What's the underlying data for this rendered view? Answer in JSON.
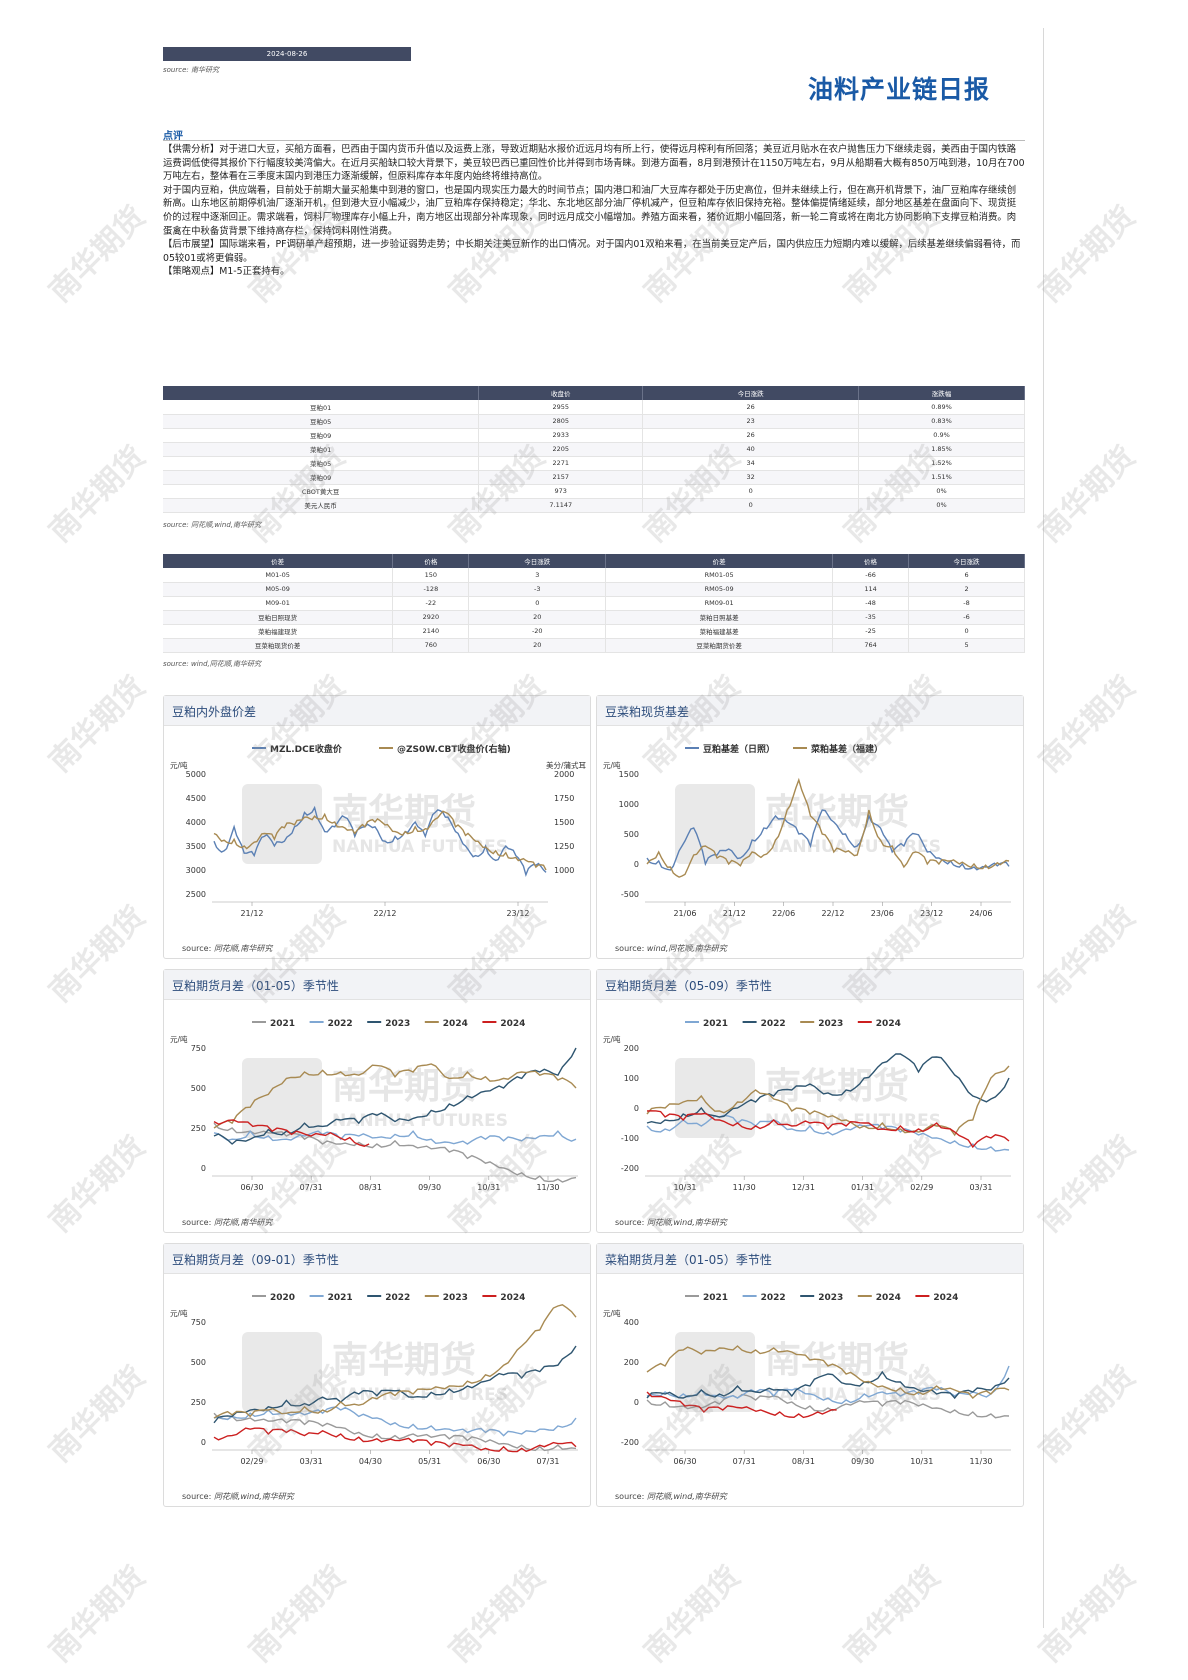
{
  "header": {
    "date": "2024-08-26",
    "source": "source: 南华研究",
    "title": "油料产业链日报"
  },
  "comment": {
    "heading": "点评",
    "paragraphs": [
      "【供需分析】对于进口大豆，买船方面看，巴西由于国内货币升值以及运费上涨，导致近期贴水报价近远月均有所上行，使得远月榨利有所回落；美豆近月贴水在农户抛售压力下继续走弱，美西由于国内铁路运费调低使得其报价下行幅度较美湾偏大。在近月买船缺口较大背景下，美豆较巴西已重回性价比并得到市场青睐。到港方面看，8月到港预计在1150万吨左右，9月从船期看大概有850万吨到港，10月在700万吨左右，整体看在三季度末国内到港压力逐渐缓解，但原料库存本年度内始终将维持高位。",
      "对于国内豆粕，供应端看，目前处于前期大量买船集中到港的窗口，也是国内现实压力最大的时间节点；国内港口和油厂大豆库存都处于历史高位，但并未继续上行，但在高开机背景下，油厂豆粕库存继续创新高。山东地区前期停机油厂逐渐开机，但到港大豆小幅减少，油厂豆粕库存保持稳定；华北、东北地区部分油厂停机减产，但豆粕库存依旧保持充裕。整体偏提情绪延续，部分地区基差在盘面向下、现货挺价的过程中逐渐回正。需求端看，饲料厂物理库存小幅上升，南方地区出现部分补库现象，同时远月成交小幅增加。养殖方面来看，猪价近期小幅回落，新一轮二育或将在南北方协同影响下支撑豆粕消费。肉蛋禽在中秋备货背景下维持高存栏，保持饲料刚性消费。",
      "【后市展望】国际端来看，PF调研单产超预期，进一步验证弱势走势；中长期关注美豆新作的出口情况。对于国内01双粕来看，在当前美豆定产后，国内供应压力短期内难以缓解，后续基差继续偏弱看待，而05较01或将更偏弱。",
      "【策略观点】M1-5正套持有。"
    ]
  },
  "table1": {
    "headers": [
      "",
      "收盘价",
      "今日涨跌",
      "涨跌幅"
    ],
    "rows": [
      [
        "豆粕01",
        "2955",
        "26",
        "0.89%"
      ],
      [
        "豆粕05",
        "2805",
        "23",
        "0.83%"
      ],
      [
        "豆粕09",
        "2933",
        "26",
        "0.9%"
      ],
      [
        "菜粕01",
        "2205",
        "40",
        "1.85%"
      ],
      [
        "菜粕05",
        "2271",
        "34",
        "1.52%"
      ],
      [
        "菜粕09",
        "2157",
        "32",
        "1.51%"
      ],
      [
        "CBOT黄大豆",
        "973",
        "0",
        "0%"
      ],
      [
        "美元人民币",
        "7.1147",
        "0",
        "0%"
      ]
    ],
    "source": "source: 同花顺,wind,南华研究"
  },
  "table2": {
    "headers": [
      "价差",
      "价格",
      "今日涨跌",
      "价差",
      "价格",
      "今日涨跌"
    ],
    "rows": [
      [
        "M01-05",
        "150",
        "3",
        "RM01-05",
        "-66",
        "6"
      ],
      [
        "M05-09",
        "-128",
        "-3",
        "RM05-09",
        "114",
        "2"
      ],
      [
        "M09-01",
        "-22",
        "0",
        "RM09-01",
        "-48",
        "-8"
      ],
      [
        "豆粕日照现货",
        "2920",
        "20",
        "菜粕日照基差",
        "-35",
        "-6"
      ],
      [
        "菜粕福建现货",
        "2140",
        "-20",
        "菜粕福建基差",
        "-25",
        "0"
      ],
      [
        "豆菜粕现货价差",
        "760",
        "20",
        "豆菜粕期货价差",
        "764",
        "5"
      ]
    ],
    "source": "source: wind,同花顺,南华研究"
  },
  "watermark": {
    "text": "南华期货",
    "logo_text": "南华期货",
    "logo_sub": "NANHUA FUTURES"
  },
  "charts": [
    {
      "title": "豆粕内外盘价差",
      "source_label": "source: ",
      "source": "同花顺,南华研究",
      "ylabel_left": "元/吨",
      "ylabel_right": "美分/蒲式耳",
      "chart_data": {
        "type": "line",
        "left_ticks": [
          "5000",
          "4500",
          "4000",
          "3500",
          "3000",
          "2500"
        ],
        "right_ticks": [
          "2000",
          "1750",
          "1500",
          "1250",
          "1000"
        ],
        "x_ticks": [
          "21/12",
          "22/12",
          "23/12"
        ],
        "series": [
          {
            "name": "MZL.DCE收盘价",
            "color": "#5b80b4",
            "axis": "left",
            "values": [
              3600,
              3400,
              3900,
              3350,
              3300,
              3700,
              3500,
              3600,
              3900,
              4200,
              4300,
              3800,
              3900,
              4100,
              3700,
              3900,
              3900,
              3600,
              3700,
              3800,
              4000,
              3700,
              4200,
              4100,
              3800,
              3500,
              3300,
              3500,
              3200,
              3500,
              3300,
              2900,
              3100,
              2950
            ]
          },
          {
            "name": "@ZS0W.CBT收盘价(右轴)",
            "color": "#a88a52",
            "axis": "right",
            "values": [
              1380,
              1310,
              1320,
              1250,
              1290,
              1380,
              1320,
              1440,
              1470,
              1550,
              1560,
              1580,
              1500,
              1440,
              1380,
              1450,
              1500,
              1470,
              1400,
              1400,
              1450,
              1430,
              1530,
              1600,
              1450,
              1360,
              1300,
              1240,
              1200,
              1180,
              1130,
              1100,
              1030,
              1000
            ]
          }
        ]
      }
    },
    {
      "title": "豆菜粕现货基差",
      "source_label": "source: ",
      "source": "wind,同花顺,南华研究",
      "ylabel_left": "元/吨",
      "ylabel_right": "",
      "chart_data": {
        "type": "line",
        "left_ticks": [
          "1500",
          "1000",
          "500",
          "0",
          "-500"
        ],
        "right_ticks": [],
        "x_ticks": [
          "21/06",
          "21/12",
          "22/06",
          "22/12",
          "23/06",
          "23/12",
          "24/06"
        ],
        "series": [
          {
            "name": "豆粕基差（日照）",
            "color": "#5b80b4",
            "axis": "left",
            "values": [
              100,
              50,
              -100,
              300,
              600,
              0,
              150,
              250,
              100,
              400,
              600,
              800,
              700,
              500,
              300,
              900,
              700,
              500,
              300,
              800,
              600,
              200,
              300,
              500,
              200,
              100,
              50,
              0,
              -50,
              -50,
              -30,
              -40
            ]
          },
          {
            "name": "菜粕基差（福建）",
            "color": "#a88a52",
            "axis": "left",
            "values": [
              0,
              200,
              -50,
              -200,
              150,
              300,
              100,
              0,
              -30,
              200,
              150,
              400,
              900,
              1400,
              800,
              500,
              200,
              200,
              150,
              900,
              400,
              300,
              -50,
              200,
              0,
              0,
              50,
              30,
              0,
              -20,
              20,
              50
            ]
          }
        ]
      }
    },
    {
      "title": "豆粕期货月差（01-05）季节性",
      "source_label": "source: ",
      "source": "同花顺,南华研究",
      "ylabel_left": "元/吨",
      "ylabel_right": "",
      "chart_data": {
        "type": "line",
        "left_ticks": [
          "750",
          "500",
          "250",
          "0"
        ],
        "right_ticks": [],
        "x_ticks": [
          "06/30",
          "07/31",
          "08/31",
          "09/30",
          "10/31",
          "11/30"
        ],
        "series": [
          {
            "name": "2021",
            "color": "#9a9a9a",
            "axis": "left",
            "values": [
              280,
              250,
              230,
              220,
              200,
              180,
              150,
              150,
              160,
              150,
              170,
              140,
              120,
              100,
              60,
              30,
              0,
              -30,
              -50,
              -70,
              -60
            ]
          },
          {
            "name": "2022",
            "color": "#7fa7d3",
            "axis": "left",
            "values": [
              220,
              180,
              230,
              200,
              180,
              200,
              210,
              180,
              200,
              190,
              210,
              230,
              180,
              160,
              150,
              180,
              170,
              170,
              200,
              230,
              180
            ]
          },
          {
            "name": "2023",
            "color": "#2e5570",
            "axis": "left",
            "values": [
              200,
              150,
              180,
              240,
              230,
              280,
              260,
              300,
              280,
              330,
              290,
              310,
              360,
              400,
              450,
              480,
              500,
              560,
              600,
              580,
              750
            ]
          },
          {
            "name": "2024",
            "color": "#a88a52",
            "axis": "left",
            "values": [
              250,
              280,
              380,
              460,
              560,
              600,
              610,
              600,
              580,
              640,
              570,
              600,
              650,
              560,
              600,
              570,
              560,
              600,
              580,
              550,
              500
            ]
          },
          {
            "name": "2024",
            "color": "#cc1f1f",
            "axis": "left",
            "values": [
              290,
              300,
              260,
              230,
              210,
              200,
              220,
              190,
              150
            ]
          }
        ]
      }
    },
    {
      "title": "豆粕期货月差（05-09）季节性",
      "source_label": "source: ",
      "source": "同花顺,wind,南华研究",
      "ylabel_left": "元/吨",
      "ylabel_right": "",
      "chart_data": {
        "type": "line",
        "left_ticks": [
          "200",
          "100",
          "0",
          "-100",
          "-200"
        ],
        "right_ticks": [],
        "x_ticks": [
          "10/31",
          "11/30",
          "12/31",
          "01/31",
          "02/29",
          "03/31"
        ],
        "series": [
          {
            "name": "2021",
            "color": "#7fa7d3",
            "axis": "left",
            "values": [
              -60,
              -70,
              -40,
              -60,
              -30,
              -50,
              -60,
              -40,
              -70,
              -60,
              -80,
              -70,
              -60,
              -70,
              -80,
              -90,
              -100,
              -110,
              -120,
              -130,
              -140
            ]
          },
          {
            "name": "2022",
            "color": "#2e5570",
            "axis": "left",
            "values": [
              -50,
              -40,
              -20,
              0,
              -30,
              0,
              20,
              40,
              60,
              80,
              50,
              60,
              100,
              150,
              180,
              120,
              170,
              110,
              40,
              30,
              100
            ]
          },
          {
            "name": "2023",
            "color": "#a88a52",
            "axis": "left",
            "values": [
              -20,
              0,
              20,
              40,
              -10,
              20,
              60,
              30,
              -10,
              -20,
              -30,
              -40,
              -60,
              -50,
              -70,
              -80,
              -60,
              -90,
              -40,
              100,
              140
            ]
          },
          {
            "name": "2024",
            "color": "#cc1f1f",
            "axis": "left",
            "values": [
              -10,
              -30,
              -40,
              -20,
              -40,
              -50,
              -60,
              -40,
              -60,
              -50,
              -70,
              -60,
              -50,
              -70,
              -60,
              -70,
              -50,
              -80,
              -130,
              -100,
              -110
            ]
          }
        ]
      }
    },
    {
      "title": "豆粕期货月差（09-01）季节性",
      "source_label": "source: ",
      "source": "同花顺,wind,南华研究",
      "ylabel_left": "元/吨",
      "ylabel_right": "",
      "chart_data": {
        "type": "line",
        "left_ticks": [
          "750",
          "500",
          "250",
          "0"
        ],
        "right_ticks": [],
        "x_ticks": [
          "02/29",
          "03/31",
          "04/30",
          "05/31",
          "06/30",
          "07/31"
        ],
        "series": [
          {
            "name": "2020",
            "color": "#9a9a9a",
            "axis": "left",
            "values": [
              180,
              160,
              150,
              130,
              120,
              110,
              100,
              90,
              60,
              50,
              40,
              50,
              30,
              20,
              10,
              0,
              -10,
              -20,
              -30,
              -20,
              -40
            ]
          },
          {
            "name": "2021",
            "color": "#7fa7d3",
            "axis": "left",
            "values": [
              150,
              160,
              180,
              200,
              180,
              170,
              180,
              200,
              160,
              150,
              120,
              110,
              100,
              80,
              60,
              60,
              40,
              50,
              80,
              100,
              150
            ]
          },
          {
            "name": "2022",
            "color": "#2e5570",
            "axis": "left",
            "values": [
              120,
              160,
              200,
              220,
              260,
              240,
              280,
              250,
              300,
              290,
              320,
              280,
              310,
              330,
              350,
              380,
              420,
              400,
              440,
              480,
              600
            ]
          },
          {
            "name": "2023",
            "color": "#a88a52",
            "axis": "left",
            "values": [
              150,
              170,
              160,
              200,
              180,
              220,
              200,
              250,
              230,
              270,
              290,
              300,
              330,
              350,
              380,
              420,
              480,
              600,
              700,
              850,
              780
            ]
          },
          {
            "name": "2024",
            "color": "#cc1f1f",
            "axis": "left",
            "values": [
              30,
              40,
              80,
              50,
              60,
              40,
              70,
              50,
              30,
              20,
              10,
              0,
              -20,
              -30,
              -20,
              -40,
              -30,
              -40,
              -20,
              -10,
              -30
            ]
          }
        ]
      }
    },
    {
      "title": "菜粕期货月差（01-05）季节性",
      "source_label": "source: ",
      "source": "同花顺,wind,南华研究",
      "ylabel_left": "元/吨",
      "ylabel_right": "",
      "chart_data": {
        "type": "line",
        "left_ticks": [
          "400",
          "200",
          "0",
          "-200"
        ],
        "right_ticks": [],
        "x_ticks": [
          "06/30",
          "07/31",
          "08/31",
          "09/30",
          "10/31",
          "11/30"
        ],
        "series": [
          {
            "name": "2021",
            "color": "#9a9a9a",
            "axis": "left",
            "values": [
              10,
              0,
              -20,
              -30,
              -10,
              20,
              10,
              30,
              0,
              -20,
              -30,
              -10,
              0,
              -20,
              -10,
              -20,
              -30,
              -40,
              -50,
              -60,
              -70
            ]
          },
          {
            "name": "2022",
            "color": "#7fa7d3",
            "axis": "left",
            "values": [
              30,
              50,
              40,
              60,
              30,
              20,
              50,
              30,
              60,
              40,
              20,
              10,
              40,
              50,
              30,
              40,
              60,
              30,
              50,
              40,
              180
            ]
          },
          {
            "name": "2023",
            "color": "#2e5570",
            "axis": "left",
            "values": [
              20,
              40,
              20,
              60,
              40,
              80,
              50,
              60,
              30,
              80,
              140,
              90,
              100,
              150,
              100,
              60,
              40,
              20,
              50,
              60,
              120
            ]
          },
          {
            "name": "2024",
            "color": "#a88a52",
            "axis": "left",
            "values": [
              150,
              180,
              260,
              240,
              270,
              280,
              260,
              270,
              250,
              210,
              180,
              140,
              100,
              80,
              70,
              50,
              80,
              60,
              20,
              40,
              60
            ]
          },
          {
            "name": "2024",
            "color": "#cc1f1f",
            "axis": "left",
            "values": [
              50,
              20,
              -20,
              -50,
              -40,
              -30,
              -40,
              -50,
              -60,
              -50,
              -40
            ]
          }
        ]
      }
    }
  ]
}
